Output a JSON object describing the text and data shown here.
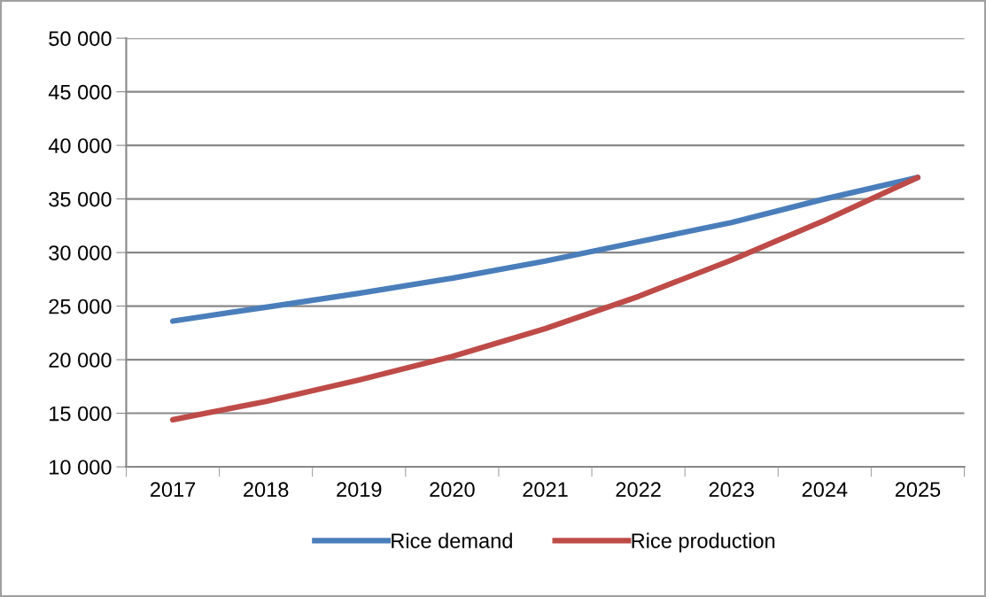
{
  "chart_data": {
    "type": "line",
    "categories": [
      "2017",
      "2018",
      "2019",
      "2020",
      "2021",
      "2022",
      "2023",
      "2024",
      "2025"
    ],
    "series": [
      {
        "name": "Rice demand",
        "color": "#4a7ebb",
        "values": [
          23600,
          24900,
          26200,
          27600,
          29200,
          31000,
          32800,
          35000,
          37000
        ]
      },
      {
        "name": "Rice production",
        "color": "#be4b48",
        "values": [
          14400,
          16100,
          18100,
          20300,
          22900,
          25900,
          29300,
          33000,
          37000
        ]
      }
    ],
    "ylim": [
      10000,
      50000
    ],
    "yticks": [
      {
        "value": 10000,
        "label": "10 000"
      },
      {
        "value": 15000,
        "label": "15 000"
      },
      {
        "value": 20000,
        "label": "20 000"
      },
      {
        "value": 25000,
        "label": "25 000"
      },
      {
        "value": 30000,
        "label": "30 000"
      },
      {
        "value": 35000,
        "label": "35 000"
      },
      {
        "value": 40000,
        "label": "40 000"
      },
      {
        "value": 45000,
        "label": "45 000"
      },
      {
        "value": 50000,
        "label": "50 000"
      }
    ],
    "grid": "y",
    "legend": "bottom",
    "marker": "none",
    "line_style": "solid"
  }
}
